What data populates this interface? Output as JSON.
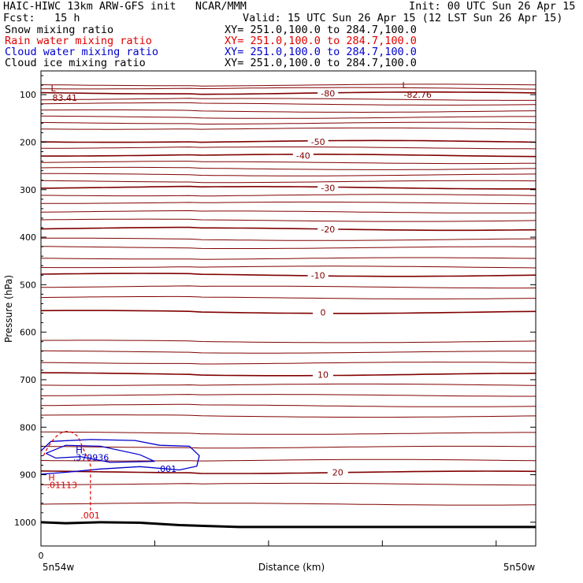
{
  "header": {
    "title_left": "HAIC-HIWC 13km ARW-GFS init   NCAR/MMM",
    "init": "Init: 00 UTC Sun 26 Apr 15",
    "fcst": "Fcst:   15 h",
    "valid": "Valid: 15 UTC Sun 26 Apr 15 (12 LST Sun 26 Apr 15)",
    "fields": [
      {
        "name": "Snow mixing ratio",
        "xy": "XY= 251.0,100.0 to 284.7,100.0",
        "color": "#000000"
      },
      {
        "name": "Rain water mixing ratio",
        "xy": "XY= 251.0,100.0 to 284.7,100.0",
        "color": "#e00000"
      },
      {
        "name": "Cloud water mixing ratio",
        "xy": "XY= 251.0,100.0 to 284.7,100.0",
        "color": "#0000cc"
      },
      {
        "name": "Cloud ice mixing ratio",
        "xy": "XY= 251.0,100.0 to 284.7,100.0",
        "color": "#000000"
      }
    ]
  },
  "chart_data": {
    "type": "line",
    "xlabel": "Distance (km)",
    "ylabel": "Pressure (hPa)",
    "x_tick_labels": {
      "left": "0",
      "left_bottom": "5n54w",
      "right_bottom": "5n50w"
    },
    "y_ticks": [
      100,
      200,
      300,
      400,
      500,
      600,
      700,
      800,
      900,
      1000
    ],
    "ylim": [
      50,
      1050
    ],
    "x_range": [
      0,
      1
    ],
    "temperature_contours": {
      "color": "#800000",
      "interval": 5,
      "lines": [
        {
          "p": 97,
          "label": "-80",
          "label_x": 0.58
        },
        {
          "p": 199,
          "label": "-50",
          "label_x": 0.56
        },
        {
          "p": 228,
          "label": "-40",
          "label_x": 0.53
        },
        {
          "p": 296,
          "label": "-30",
          "label_x": 0.58
        },
        {
          "p": 383,
          "label": "-20",
          "label_x": 0.58
        },
        {
          "p": 480,
          "label": "-10",
          "label_x": 0.56
        },
        {
          "p": 558,
          "label": "0",
          "label_x": 0.57
        },
        {
          "p": 689,
          "label": "10",
          "label_x": 0.57
        },
        {
          "p": 895,
          "label": "20",
          "label_x": 0.6
        }
      ],
      "extra_levels": [
        80,
        87,
        110,
        120,
        135,
        148,
        160,
        172,
        212,
        243,
        256,
        269,
        283,
        312,
        328,
        347,
        365,
        405,
        422,
        445,
        463,
        505,
        528,
        620,
        642,
        665,
        711,
        733,
        755,
        777,
        813,
        842,
        870,
        920,
        962
      ]
    },
    "temperature_extrema": [
      {
        "type": "L",
        "value": "83.41",
        "x": 0.02,
        "p": 100
      },
      {
        "type": "L",
        "value": "-82.76",
        "x": 0.73,
        "p": 93
      }
    ],
    "surface_pressure": [
      [
        0,
        1000
      ],
      [
        0.05,
        1002
      ],
      [
        0.12,
        1000
      ],
      [
        0.2,
        1001
      ],
      [
        0.28,
        1006
      ],
      [
        0.4,
        1010
      ],
      [
        1,
        1010
      ]
    ],
    "cloud_water": {
      "color": "#0000cc",
      "max_label": "H",
      "max_value": ".379936",
      "contour_label": ".001"
    },
    "rain_water": {
      "color": "#e00000",
      "max_label": "H",
      "max_value": ".01113",
      "contour_label": ".001"
    }
  }
}
